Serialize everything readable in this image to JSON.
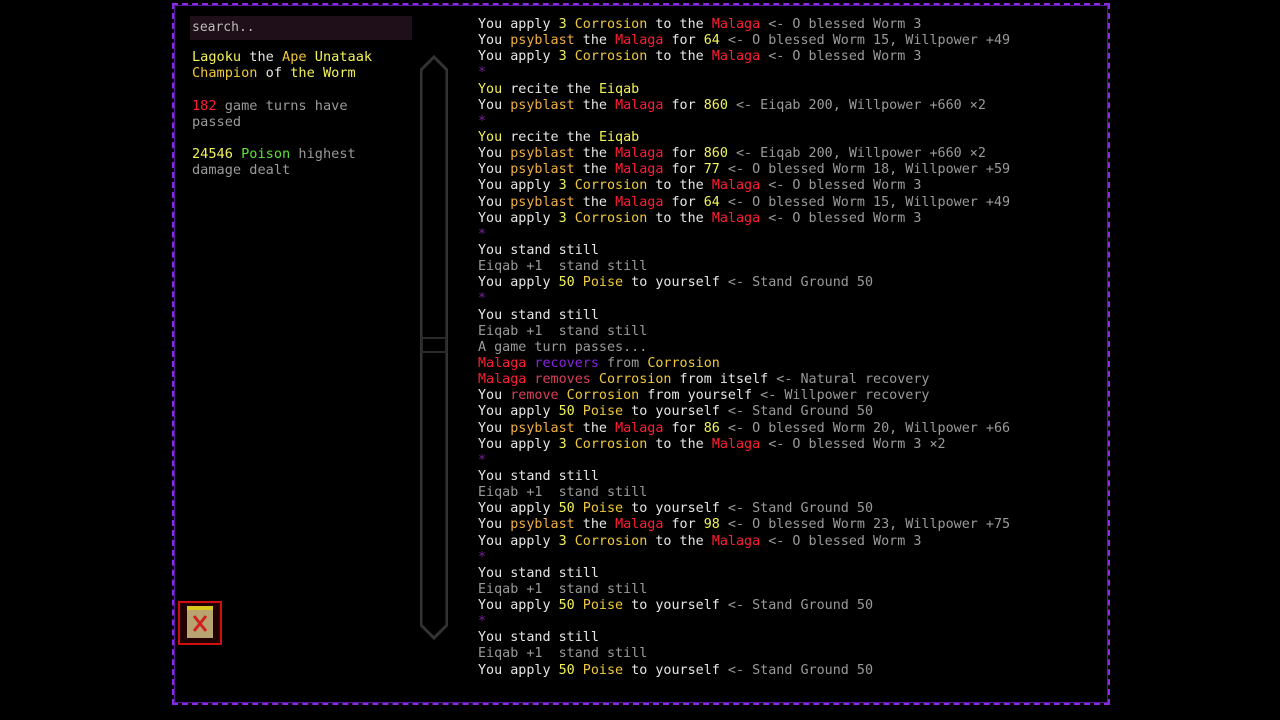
{
  "colors": {
    "w": "#e6e6e6",
    "g": "#9a9a9a",
    "y": "#f2f25a",
    "c": "#f0c838",
    "o": "#f0b040",
    "r": "#ff1e32",
    "p": "#8a22e0",
    "m": "#d84058",
    "s": "#7a20a0",
    "frame": "#8a2be2"
  },
  "search": {
    "placeholder": "search.."
  },
  "sidebar": {
    "character": [
      [
        "Lagoku",
        "y"
      ],
      [
        " the ",
        "w"
      ],
      [
        "Ape",
        "c"
      ],
      [
        " Unataak",
        "y"
      ],
      [
        "\n",
        ""
      ],
      [
        "Champion",
        "c"
      ],
      [
        " of ",
        "w"
      ],
      [
        "the Worm",
        "y"
      ]
    ],
    "turns": [
      [
        "182",
        "r"
      ],
      [
        " game turns have\npassed",
        "g"
      ]
    ],
    "damage": [
      [
        "24546",
        "y"
      ],
      [
        " Poison",
        "green"
      ],
      [
        " highest\ndamage dealt",
        "g"
      ]
    ]
  },
  "banner_icon": "worm-banner-icon",
  "log": [
    [
      [
        "You apply ",
        "w"
      ],
      [
        "3",
        "y"
      ],
      [
        " Corrosion",
        "c"
      ],
      [
        " to the ",
        "w"
      ],
      [
        "Malaga",
        "r"
      ],
      [
        " <- O blessed Worm 3",
        "g"
      ]
    ],
    [
      [
        "You ",
        "w"
      ],
      [
        "psyblast",
        "o"
      ],
      [
        " the ",
        "w"
      ],
      [
        "Malaga",
        "r"
      ],
      [
        " for ",
        "w"
      ],
      [
        "64",
        "y"
      ],
      [
        " <- O blessed Worm 15, Willpower +49",
        "g"
      ]
    ],
    [
      [
        "You apply ",
        "w"
      ],
      [
        "3",
        "y"
      ],
      [
        " Corrosion",
        "c"
      ],
      [
        " to the ",
        "w"
      ],
      [
        "Malaga",
        "r"
      ],
      [
        " <- O blessed Worm 3",
        "g"
      ]
    ],
    [
      [
        "*",
        "s"
      ]
    ],
    [
      [
        "You",
        "y"
      ],
      [
        " recite the ",
        "w"
      ],
      [
        "Eiqab",
        "y"
      ]
    ],
    [
      [
        "You ",
        "w"
      ],
      [
        "psyblast",
        "o"
      ],
      [
        " the ",
        "w"
      ],
      [
        "Malaga",
        "r"
      ],
      [
        " for ",
        "w"
      ],
      [
        "860",
        "y"
      ],
      [
        " <- Eiqab 200, Willpower +660 ×2",
        "g"
      ]
    ],
    [
      [
        "*",
        "s"
      ]
    ],
    [
      [
        "You",
        "y"
      ],
      [
        " recite the ",
        "w"
      ],
      [
        "Eiqab",
        "y"
      ]
    ],
    [
      [
        "You ",
        "w"
      ],
      [
        "psyblast",
        "o"
      ],
      [
        " the ",
        "w"
      ],
      [
        "Malaga",
        "r"
      ],
      [
        " for ",
        "w"
      ],
      [
        "860",
        "y"
      ],
      [
        " <- Eiqab 200, Willpower +660 ×2",
        "g"
      ]
    ],
    [
      [
        "You ",
        "w"
      ],
      [
        "psyblast",
        "o"
      ],
      [
        " the ",
        "w"
      ],
      [
        "Malaga",
        "r"
      ],
      [
        " for ",
        "w"
      ],
      [
        "77",
        "y"
      ],
      [
        " <- O blessed Worm 18, Willpower +59",
        "g"
      ]
    ],
    [
      [
        "You apply ",
        "w"
      ],
      [
        "3",
        "y"
      ],
      [
        " Corrosion",
        "c"
      ],
      [
        " to the ",
        "w"
      ],
      [
        "Malaga",
        "r"
      ],
      [
        " <- O blessed Worm 3",
        "g"
      ]
    ],
    [
      [
        "You ",
        "w"
      ],
      [
        "psyblast",
        "o"
      ],
      [
        " the ",
        "w"
      ],
      [
        "Malaga",
        "r"
      ],
      [
        " for ",
        "w"
      ],
      [
        "64",
        "y"
      ],
      [
        " <- O blessed Worm 15, Willpower +49",
        "g"
      ]
    ],
    [
      [
        "You apply ",
        "w"
      ],
      [
        "3",
        "y"
      ],
      [
        " Corrosion",
        "c"
      ],
      [
        " to the ",
        "w"
      ],
      [
        "Malaga",
        "r"
      ],
      [
        " <- O blessed Worm 3",
        "g"
      ]
    ],
    [
      [
        "*",
        "s"
      ]
    ],
    [
      [
        "You stand still",
        "w"
      ]
    ],
    [
      [
        "Eiqab +1  stand still",
        "g"
      ]
    ],
    [
      [
        "You apply ",
        "w"
      ],
      [
        "50",
        "y"
      ],
      [
        " Poise",
        "c"
      ],
      [
        " to yourself",
        "w"
      ],
      [
        " <- Stand Ground 50",
        "g"
      ]
    ],
    [
      [
        "*",
        "s"
      ]
    ],
    [
      [
        "You stand still",
        "w"
      ]
    ],
    [
      [
        "Eiqab +1  stand still",
        "g"
      ]
    ],
    [
      [
        "A game turn passes...",
        "g"
      ]
    ],
    [
      [
        "Malaga",
        "r"
      ],
      [
        " recovers",
        "p"
      ],
      [
        " from ",
        "g"
      ],
      [
        "Corrosion",
        "c"
      ]
    ],
    [
      [
        "Malaga",
        "r"
      ],
      [
        " removes",
        "m"
      ],
      [
        " Corrosion",
        "c"
      ],
      [
        " from itself",
        "w"
      ],
      [
        " <- Natural recovery",
        "g"
      ]
    ],
    [
      [
        "You ",
        "w"
      ],
      [
        "remove",
        "m"
      ],
      [
        " Corrosion",
        "c"
      ],
      [
        " from yourself",
        "w"
      ],
      [
        " <- Willpower recovery",
        "g"
      ]
    ],
    [
      [
        "You apply ",
        "w"
      ],
      [
        "50",
        "y"
      ],
      [
        " Poise",
        "c"
      ],
      [
        " to yourself",
        "w"
      ],
      [
        " <- Stand Ground 50",
        "g"
      ]
    ],
    [
      [
        "You ",
        "w"
      ],
      [
        "psyblast",
        "o"
      ],
      [
        " the ",
        "w"
      ],
      [
        "Malaga",
        "r"
      ],
      [
        " for ",
        "w"
      ],
      [
        "86",
        "y"
      ],
      [
        " <- O blessed Worm 20, Willpower +66",
        "g"
      ]
    ],
    [
      [
        "You apply ",
        "w"
      ],
      [
        "3",
        "y"
      ],
      [
        " Corrosion",
        "c"
      ],
      [
        " to the ",
        "w"
      ],
      [
        "Malaga",
        "r"
      ],
      [
        " <- O blessed Worm 3 ×2",
        "g"
      ]
    ],
    [
      [
        "*",
        "s"
      ]
    ],
    [
      [
        "You stand still",
        "w"
      ]
    ],
    [
      [
        "Eiqab +1  stand still",
        "g"
      ]
    ],
    [
      [
        "You apply ",
        "w"
      ],
      [
        "50",
        "y"
      ],
      [
        " Poise",
        "c"
      ],
      [
        " to yourself",
        "w"
      ],
      [
        " <- Stand Ground 50",
        "g"
      ]
    ],
    [
      [
        "You ",
        "w"
      ],
      [
        "psyblast",
        "o"
      ],
      [
        " the ",
        "w"
      ],
      [
        "Malaga",
        "r"
      ],
      [
        " for ",
        "w"
      ],
      [
        "98",
        "y"
      ],
      [
        " <- O blessed Worm 23, Willpower +75",
        "g"
      ]
    ],
    [
      [
        "You apply ",
        "w"
      ],
      [
        "3",
        "y"
      ],
      [
        " Corrosion",
        "c"
      ],
      [
        " to the ",
        "w"
      ],
      [
        "Malaga",
        "r"
      ],
      [
        " <- O blessed Worm 3",
        "g"
      ]
    ],
    [
      [
        "*",
        "s"
      ]
    ],
    [
      [
        "You stand still",
        "w"
      ]
    ],
    [
      [
        "Eiqab +1  stand still",
        "g"
      ]
    ],
    [
      [
        "You apply ",
        "w"
      ],
      [
        "50",
        "y"
      ],
      [
        " Poise",
        "c"
      ],
      [
        " to yourself",
        "w"
      ],
      [
        " <- Stand Ground 50",
        "g"
      ]
    ],
    [
      [
        "*",
        "s"
      ]
    ],
    [
      [
        "You stand still",
        "w"
      ]
    ],
    [
      [
        "Eiqab +1  stand still",
        "g"
      ]
    ],
    [
      [
        "You apply ",
        "w"
      ],
      [
        "50",
        "y"
      ],
      [
        " Poise",
        "c"
      ],
      [
        " to yourself",
        "w"
      ],
      [
        " <- Stand Ground 50",
        "g"
      ]
    ]
  ]
}
